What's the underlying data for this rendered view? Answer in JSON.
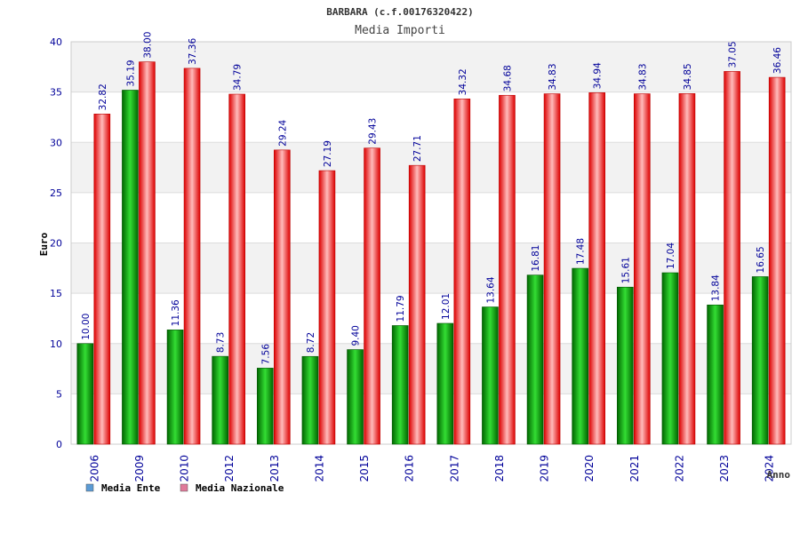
{
  "chart_data": {
    "type": "bar",
    "title": "BARBARA (c.f.00176320422)",
    "subtitle": "Media Importi",
    "xlabel": "Anno",
    "ylabel": "Euro",
    "ylim": [
      0,
      40
    ],
    "yticks": [
      0,
      5,
      10,
      15,
      20,
      25,
      30,
      35,
      40
    ],
    "ytick_labels": [
      "0",
      "5",
      "10",
      "15",
      "20",
      "25",
      "30",
      "35",
      "40"
    ],
    "grid": true,
    "legend_position": "bottom-left",
    "categories": [
      "2006",
      "2009",
      "2010",
      "2012",
      "2013",
      "2014",
      "2015",
      "2016",
      "2017",
      "2018",
      "2019",
      "2020",
      "2021",
      "2022",
      "2023",
      "2024"
    ],
    "series": [
      {
        "name": "Media Ente",
        "legend_color": "#5b9bd5",
        "color_dark": "#006600",
        "color_light": "#33dd33",
        "values": [
          10.0,
          35.19,
          11.36,
          8.73,
          7.56,
          8.72,
          9.4,
          11.79,
          12.01,
          13.64,
          16.81,
          17.48,
          15.61,
          17.04,
          13.84,
          16.65
        ],
        "labels": [
          "10.00",
          "35.19",
          "11.36",
          "8.73",
          "7.56",
          "8.72",
          "9.40",
          "11.79",
          "12.01",
          "13.64",
          "16.81",
          "17.48",
          "15.61",
          "17.04",
          "13.84",
          "16.65"
        ]
      },
      {
        "name": "Media Nazionale",
        "legend_color": "#e07a9a",
        "color_dark": "#dd0000",
        "color_light": "#ffbbbb",
        "values": [
          32.82,
          38.0,
          37.36,
          34.79,
          29.24,
          27.19,
          29.43,
          27.71,
          34.32,
          34.68,
          34.83,
          34.94,
          34.83,
          34.85,
          37.05,
          36.46
        ],
        "labels": [
          "32.82",
          "38.00",
          "37.36",
          "34.79",
          "29.24",
          "27.19",
          "29.43",
          "27.71",
          "34.32",
          "34.68",
          "34.83",
          "34.94",
          "34.83",
          "34.85",
          "37.05",
          "36.46"
        ]
      }
    ],
    "colors": {
      "band_light": "#ffffff",
      "band_shaded": "#f2f2f2",
      "gridline": "#dcdcdc",
      "axis_text": "#000099",
      "title_text": "#333333",
      "label_text": "#000099"
    }
  }
}
